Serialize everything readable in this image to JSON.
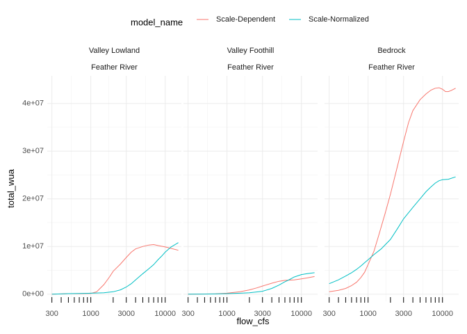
{
  "chart_data": {
    "type": "line",
    "xlabel": "flow_cfs",
    "ylabel": "total_wua",
    "x_scale": "log10",
    "xlim": [
      260,
      16500
    ],
    "ylim": [
      -1500000,
      45800000
    ],
    "x_ticks": [
      300,
      1000,
      3000,
      10000
    ],
    "x_tick_labels": [
      "300",
      "1000",
      "3000",
      "10000"
    ],
    "y_ticks": [
      0,
      10000000,
      20000000,
      30000000,
      40000000
    ],
    "y_tick_labels": [
      "0e+00",
      "1e+07",
      "2e+07",
      "3e+07",
      "4e+07"
    ],
    "rug_x": [
      300,
      400,
      500,
      600,
      700,
      800,
      900,
      1000,
      2000,
      3000,
      4000,
      5000,
      6000,
      7000,
      8000,
      9000,
      10000
    ],
    "grid": true,
    "legend": {
      "title": "model_name",
      "position": "top",
      "entries": [
        {
          "label": "Scale-Dependent",
          "color": "#F8766D"
        },
        {
          "label": "Scale-Normalized",
          "color": "#00BFC4"
        }
      ]
    },
    "facets": [
      {
        "label1": "Valley Lowland",
        "label2": "Feather River",
        "series": [
          {
            "name": "Scale-Dependent",
            "color": "#F8766D",
            "x": [
              300,
              400,
              500,
              700,
              1000,
              1200,
              1500,
              1800,
              2000,
              2500,
              3000,
              3500,
              4000,
              5000,
              6000,
              7000,
              8000,
              10000,
              12000,
              15000
            ],
            "y": [
              0,
              50000,
              100000,
              100000,
              150000,
              500000,
              2000000,
              3700000,
              4800000,
              6300000,
              7700000,
              8800000,
              9500000,
              10000000,
              10300000,
              10400000,
              10200000,
              9900000,
              9600000,
              9200000
            ]
          },
          {
            "name": "Scale-Normalized",
            "color": "#00BFC4",
            "x": [
              300,
              400,
              500,
              700,
              1000,
              1500,
              2000,
              2500,
              3000,
              3500,
              4000,
              5000,
              6000,
              7000,
              8000,
              9000,
              10000,
              12000,
              15000
            ],
            "y": [
              0,
              50000,
              100000,
              150000,
              200000,
              300000,
              500000,
              900000,
              1500000,
              2200000,
              3000000,
              4300000,
              5300000,
              6200000,
              7200000,
              8000000,
              8800000,
              9900000,
              10800000
            ]
          }
        ]
      },
      {
        "label1": "Valley Foothill",
        "label2": "Feather River",
        "series": [
          {
            "name": "Scale-Dependent",
            "color": "#F8766D",
            "x": [
              300,
              500,
              700,
              1000,
              1500,
              2000,
              2500,
              3000,
              4000,
              5000,
              6000,
              8000,
              10000,
              12000,
              15000
            ],
            "y": [
              0,
              30000,
              80000,
              200000,
              500000,
              900000,
              1300000,
              1700000,
              2300000,
              2700000,
              2900000,
              3000000,
              3200000,
              3400000,
              3700000
            ]
          },
          {
            "name": "Scale-Normalized",
            "color": "#00BFC4",
            "x": [
              300,
              500,
              700,
              1000,
              1500,
              2000,
              3000,
              4000,
              5000,
              6000,
              7000,
              8000,
              10000,
              12000,
              15000
            ],
            "y": [
              0,
              20000,
              50000,
              100000,
              200000,
              300000,
              600000,
              1200000,
              1900000,
              2600000,
              3100000,
              3600000,
              4100000,
              4300000,
              4500000
            ]
          }
        ]
      },
      {
        "label1": "Bedrock",
        "label2": "Feather River",
        "series": [
          {
            "name": "Scale-Dependent",
            "color": "#F8766D",
            "x": [
              300,
              400,
              500,
              600,
              700,
              800,
              900,
              1000,
              1200,
              1400,
              1700,
              2000,
              2500,
              3000,
              3500,
              4000,
              5000,
              6000,
              7000,
              8000,
              9000,
              10000,
              11000,
              12000,
              13000,
              15000
            ],
            "y": [
              500000,
              800000,
              1200000,
              1800000,
              2500000,
              3500000,
              4600000,
              6200000,
              9000000,
              12500000,
              17000000,
              21000000,
              27000000,
              32000000,
              36000000,
              38500000,
              40800000,
              42000000,
              42800000,
              43200000,
              43300000,
              43000000,
              42500000,
              42500000,
              42700000,
              43200000
            ]
          },
          {
            "name": "Scale-Normalized",
            "color": "#00BFC4",
            "x": [
              300,
              400,
              500,
              600,
              700,
              800,
              900,
              1000,
              1200,
              1500,
              2000,
              2500,
              3000,
              4000,
              5000,
              6000,
              7000,
              8000,
              9000,
              10000,
              12000,
              15000
            ],
            "y": [
              2200000,
              3000000,
              3800000,
              4500000,
              5200000,
              5900000,
              6600000,
              7200000,
              8300000,
              9500000,
              11500000,
              13800000,
              15800000,
              18200000,
              20000000,
              21500000,
              22500000,
              23300000,
              23800000,
              24000000,
              24100000,
              24600000
            ]
          }
        ]
      }
    ]
  }
}
